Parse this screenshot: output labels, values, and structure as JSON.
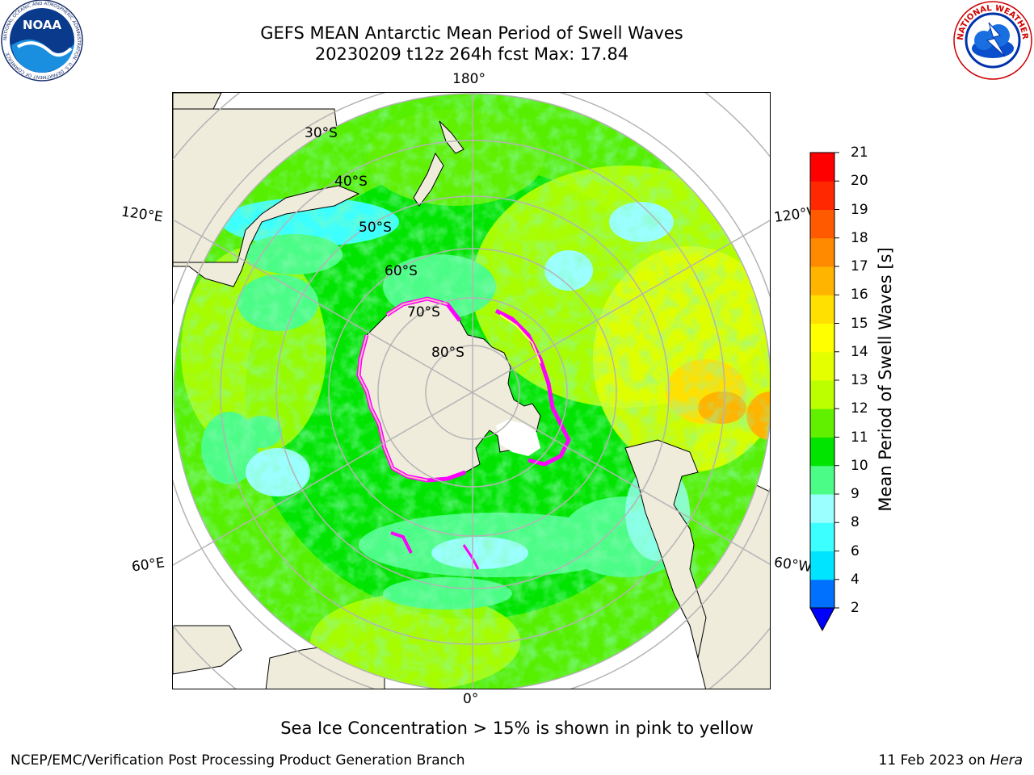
{
  "header": {
    "title_line1": "GEFS MEAN Antarctic Mean Period of Swell Waves",
    "title_line2": "20230209 t12z 264h fcst   Max: 17.84"
  },
  "logos": {
    "left": {
      "name": "noaa-logo",
      "text": "NOAA",
      "ring_text": "NATIONAL OCEANIC AND ATMOSPHERIC ADMINISTRATION · U.S. DEPARTMENT OF COMMERCE"
    },
    "right": {
      "name": "nws-logo",
      "ring_text": "NATIONAL WEATHER SERVICE"
    }
  },
  "map": {
    "projection": "south polar stereographic",
    "lon_labels": {
      "top": "180°",
      "bottom": "0°",
      "left_upper": "120°E",
      "left_lower": "60°E",
      "right_upper": "120°W",
      "right_lower": "60°W"
    },
    "lat_labels": [
      "30°S",
      "40°S",
      "50°S",
      "60°S",
      "70°S",
      "80°S"
    ],
    "land_color": "#efecdc",
    "ice_colors": [
      "#ff00ff",
      "#ffb6c1",
      "#ffff66"
    ]
  },
  "colorbar": {
    "label": "Mean Period of Swell Waves [s]",
    "ticks": [
      "2",
      "4",
      "6",
      "8",
      "9",
      "10",
      "11",
      "12",
      "13",
      "14",
      "15",
      "16",
      "17",
      "18",
      "19",
      "20",
      "21"
    ],
    "colors": [
      "#0070ff",
      "#00e4ff",
      "#3cffff",
      "#9bffff",
      "#4bfc86",
      "#00e400",
      "#60f000",
      "#bbff00",
      "#e4ff00",
      "#ffff00",
      "#ffe000",
      "#ffb400",
      "#ff8a00",
      "#ff5a00",
      "#ff2800",
      "#ff0000"
    ],
    "under_color": "#0000ff"
  },
  "footer": {
    "note": "Sea Ice Concentration > 15% is shown in pink to yellow",
    "credit": "NCEP/EMC/Verification Post Processing Product Generation Branch",
    "date": "11 Feb 2023 on",
    "system": "Hera"
  }
}
